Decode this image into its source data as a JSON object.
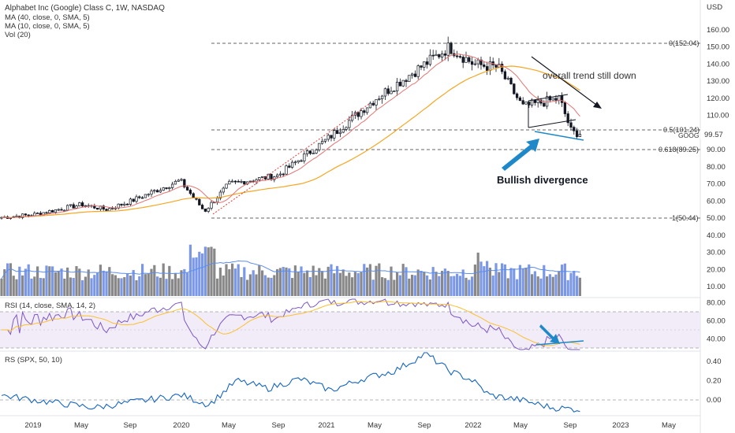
{
  "header": {
    "title": "Alphabet Inc (Google) Class C, 1W, NASDAQ",
    "indicators": [
      "MA (40, close, 0, SMA, 5)",
      "MA (10, close, 0, SMA, 5)",
      "Vol (20)"
    ],
    "currency": "USD"
  },
  "panes": {
    "rsi_label": "RSI (14, close, SMA, 14, 2)",
    "rs_label": "RS (SPX, 50, 10)"
  },
  "price_axis": [
    "160.00",
    "150.00",
    "140.00",
    "130.00",
    "120.00",
    "110.00",
    "100.00",
    "90.00",
    "80.00",
    "70.00",
    "60.00",
    "50.00",
    "40.00",
    "30.00",
    "20.00",
    "10.00"
  ],
  "rsi_axis": [
    "80.00",
    "60.00",
    "40.00"
  ],
  "rs_axis": [
    "0.40",
    "0.20",
    "0.00"
  ],
  "time_axis": [
    "2019",
    "May",
    "Sep",
    "2020",
    "May",
    "Sep",
    "2021",
    "May",
    "Sep",
    "2022",
    "May",
    "Sep",
    "2023",
    "May"
  ],
  "fib_labels": {
    "f0": "0(152.04)",
    "f05": "0.5(101.24)",
    "f0618": "0.618(89.25)",
    "f1": "1(50.44)"
  },
  "last_price": "99.57",
  "ticker": "GOOG",
  "annotations": {
    "trend": "overall trend still down",
    "divergence": "Bullish divergence"
  },
  "colors": {
    "up": "#131722",
    "down": "#131722",
    "ma40": "#f5a623",
    "ma10": "#e57373",
    "vol_up": "#888888",
    "vol_down": "#7a98e6",
    "rsi": "#7e57c2",
    "rsi_band": "#ede7f6",
    "rs": "#1565c0",
    "arrow": "#1e88c8"
  },
  "chart_data": {
    "type": "candlestick",
    "title": "Alphabet Inc (Google) Class C, 1W, NASDAQ",
    "ylabel": "USD",
    "ylim": [
      10,
      160
    ],
    "fib_levels": [
      {
        "ratio": 0,
        "price": 152.04
      },
      {
        "ratio": 0.5,
        "price": 101.24
      },
      {
        "ratio": 0.618,
        "price": 89.25
      },
      {
        "ratio": 1,
        "price": 50.44
      }
    ],
    "last_price": 99.57,
    "price_path": [
      {
        "x": "2019-01",
        "close": 52
      },
      {
        "x": "2019-05",
        "close": 58
      },
      {
        "x": "2019-07",
        "close": 55
      },
      {
        "x": "2019-09",
        "close": 60
      },
      {
        "x": "2020-01",
        "close": 72
      },
      {
        "x": "2020-03",
        "close": 54
      },
      {
        "x": "2020-05",
        "close": 70
      },
      {
        "x": "2020-09",
        "close": 75
      },
      {
        "x": "2021-01",
        "close": 96
      },
      {
        "x": "2021-05",
        "close": 120
      },
      {
        "x": "2021-09",
        "close": 140
      },
      {
        "x": "2021-11",
        "close": 150
      },
      {
        "x": "2022-01",
        "close": 140
      },
      {
        "x": "2022-03",
        "close": 138
      },
      {
        "x": "2022-05",
        "close": 115
      },
      {
        "x": "2022-08",
        "close": 120
      },
      {
        "x": "2022-09",
        "close": 100
      },
      {
        "x": "2022-10",
        "close": 99.57
      }
    ],
    "rsi": {
      "ylim": [
        25,
        85
      ],
      "band": [
        30,
        70
      ]
    },
    "rs": {
      "ylim": [
        -0.12,
        0.5
      ]
    }
  }
}
